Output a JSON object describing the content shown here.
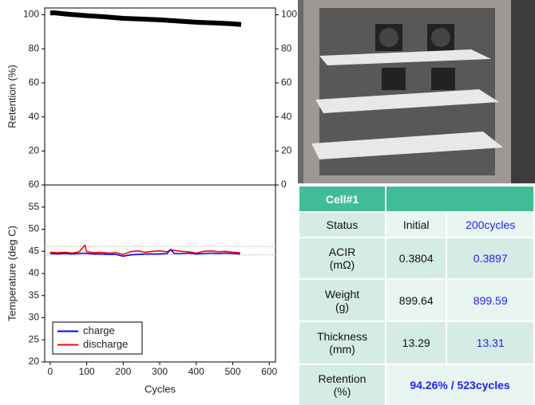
{
  "chart_data": [
    {
      "type": "line",
      "ylabel": "Retention (%)",
      "x": [
        0,
        10,
        50,
        100,
        150,
        200,
        250,
        300,
        350,
        400,
        450,
        500,
        523
      ],
      "series": [
        {
          "name": "retention",
          "color": "#000000",
          "values": [
            101,
            101.2,
            100.3,
            99.5,
            98.8,
            97.9,
            97.5,
            97,
            96.3,
            95.6,
            95.2,
            94.7,
            94.26
          ]
        }
      ],
      "xlim": [
        -15,
        617
      ],
      "ylim": [
        0,
        104
      ],
      "yticks": [
        20,
        40,
        60,
        80,
        100
      ],
      "y2lim": [
        0,
        104
      ],
      "y2ticks": [
        0,
        20,
        40,
        60,
        80,
        100
      ],
      "legend": false
    },
    {
      "type": "line",
      "xlabel": "Cycles",
      "ylabel": "Temperature (deg C)",
      "x": [
        0,
        20,
        40,
        60,
        80,
        95,
        100,
        120,
        140,
        160,
        180,
        200,
        220,
        240,
        260,
        280,
        300,
        320,
        330,
        340,
        360,
        380,
        400,
        420,
        440,
        460,
        480,
        500,
        520
      ],
      "series": [
        {
          "name": "discharge",
          "color": "#ff0000",
          "values": [
            44.8,
            44.7,
            44.8,
            44.6,
            44.9,
            46.4,
            44.9,
            44.7,
            44.8,
            44.6,
            44.7,
            44.3,
            44.9,
            45.1,
            44.8,
            45.0,
            45.1,
            44.9,
            45.3,
            45.2,
            45.0,
            44.9,
            44.6,
            45.0,
            45.1,
            44.9,
            45.0,
            44.8,
            44.7
          ]
        },
        {
          "name": "charge",
          "color": "#0000ff",
          "values": [
            44.5,
            44.4,
            44.5,
            44.4,
            44.5,
            44.6,
            44.5,
            44.4,
            44.4,
            44.3,
            44.3,
            43.9,
            44.2,
            44.3,
            44.4,
            44.4,
            44.4,
            44.5,
            45.4,
            44.5,
            44.5,
            44.6,
            44.4,
            44.5,
            44.6,
            44.5,
            44.6,
            44.5,
            44.4
          ]
        }
      ],
      "reference_lines": [
        44.2,
        46.1
      ],
      "xlim": [
        -15,
        617
      ],
      "ylim": [
        20,
        60
      ],
      "xticks": [
        0,
        100,
        200,
        300,
        400,
        500,
        600
      ],
      "yticks": [
        20,
        25,
        30,
        35,
        40,
        45,
        50,
        55,
        60
      ],
      "legend": "lower left"
    }
  ],
  "table": {
    "title": "Cell#1",
    "rows": [
      {
        "label": [
          "Status"
        ],
        "cells": [
          "Initial",
          "200cycles"
        ]
      },
      {
        "label": [
          "ACIR",
          "(mΩ)"
        ],
        "cells": [
          "0.3804",
          "0.3897"
        ]
      },
      {
        "label": [
          "Weight",
          "(g)"
        ],
        "cells": [
          "899.64",
          "899.59"
        ]
      },
      {
        "label": [
          "Thickness",
          "(mm)"
        ],
        "cells": [
          "13.29",
          "13.31"
        ]
      },
      {
        "label": [
          "Retention",
          "(%)"
        ],
        "cells": [
          "94.26% / 523cycles"
        ]
      }
    ]
  }
}
